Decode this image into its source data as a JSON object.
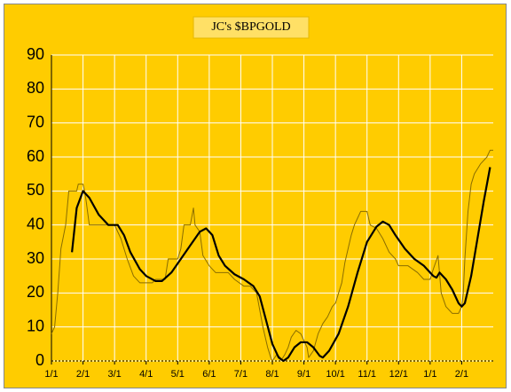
{
  "chart_data": {
    "type": "line",
    "title": "JC's $BPGOLD",
    "xlim": [
      0,
      14
    ],
    "xticks": [
      {
        "value": 0,
        "label": "1/1"
      },
      {
        "value": 1,
        "label": "2/1"
      },
      {
        "value": 2,
        "label": "3/1"
      },
      {
        "value": 3,
        "label": "4/1"
      },
      {
        "value": 4,
        "label": "5/1"
      },
      {
        "value": 5,
        "label": "6/1"
      },
      {
        "value": 6,
        "label": "7/1"
      },
      {
        "value": 7,
        "label": "8/1"
      },
      {
        "value": 8,
        "label": "9/1"
      },
      {
        "value": 9,
        "label": "10/1"
      },
      {
        "value": 10,
        "label": "11/1"
      },
      {
        "value": 11,
        "label": "12/1"
      },
      {
        "value": 12,
        "label": "1/1"
      },
      {
        "value": 13,
        "label": "2/1"
      }
    ],
    "ylim": [
      0,
      90
    ],
    "yticks": [
      0,
      10,
      20,
      30,
      40,
      50,
      60,
      70,
      80,
      90
    ],
    "grid": true,
    "background": "#ffcc00",
    "series": [
      {
        "color": "#8a6d00",
        "width": 1,
        "x": [
          0,
          0.1,
          0.2,
          0.3,
          0.45,
          0.55,
          0.8,
          0.85,
          1.0,
          1.05,
          1.1,
          1.2,
          1.5,
          2.0,
          2.2,
          2.4,
          2.6,
          2.8,
          3.0,
          3.2,
          3.3,
          3.6,
          3.7,
          4.0,
          4.1,
          4.2,
          4.4,
          4.5,
          4.55,
          4.7,
          4.8,
          5.0,
          5.2,
          5.6,
          5.8,
          6.1,
          6.3,
          6.5,
          6.7,
          6.85,
          6.95,
          7.0,
          7.15,
          7.3,
          7.4,
          7.5,
          7.6,
          7.75,
          7.9,
          8.0,
          8.1,
          8.15,
          8.3,
          8.45,
          8.6,
          8.75,
          8.9,
          9.0,
          9.1,
          9.2,
          9.3,
          9.4,
          9.5,
          9.6,
          9.7,
          9.8,
          10.0,
          10.1,
          10.3,
          10.5,
          10.7,
          10.9,
          11.0,
          11.3,
          11.6,
          11.8,
          12.0,
          12.1,
          12.25,
          12.35,
          12.5,
          12.7,
          12.9,
          13.0,
          13.05,
          13.1,
          13.2,
          13.3,
          13.4,
          13.6,
          13.8,
          13.9,
          14.0
        ],
        "values": [
          8,
          10,
          20,
          33,
          40,
          50,
          50,
          52,
          52,
          50,
          47,
          40,
          40,
          40,
          36,
          30,
          25,
          23,
          23,
          23,
          24,
          24,
          30,
          30,
          33,
          40,
          40,
          45,
          40,
          38,
          31,
          28,
          26,
          26,
          24,
          22,
          22,
          20,
          10,
          4,
          1,
          0,
          2,
          0.5,
          2,
          4,
          7,
          9,
          8,
          6,
          4,
          1,
          3,
          8,
          11,
          13,
          16,
          17,
          20,
          23,
          29,
          33,
          37,
          40,
          42,
          44,
          44,
          40,
          39,
          36,
          32,
          30,
          28,
          28,
          26,
          24,
          24,
          27,
          31,
          20,
          16,
          14,
          14,
          16,
          20,
          30,
          44,
          52,
          55,
          58,
          60,
          62,
          62
        ]
      },
      {
        "color": "#000000",
        "width": 2.2,
        "x": [
          0.65,
          0.8,
          1.0,
          1.2,
          1.5,
          1.8,
          2.1,
          2.3,
          2.5,
          2.8,
          3.0,
          3.3,
          3.5,
          3.8,
          4.1,
          4.4,
          4.7,
          4.9,
          5.1,
          5.3,
          5.5,
          5.8,
          6.1,
          6.4,
          6.6,
          6.8,
          7.0,
          7.2,
          7.35,
          7.5,
          7.7,
          7.9,
          8.1,
          8.3,
          8.5,
          8.6,
          8.8,
          9.1,
          9.4,
          9.7,
          10.0,
          10.3,
          10.5,
          10.7,
          10.9,
          11.2,
          11.5,
          11.8,
          12.0,
          12.1,
          12.2,
          12.3,
          12.5,
          12.7,
          12.9,
          13.0,
          13.1,
          13.3,
          13.5,
          13.7,
          13.9
        ],
        "values": [
          32,
          45,
          50,
          48,
          43,
          40,
          40,
          37,
          32,
          27,
          25,
          23.5,
          23.5,
          26,
          30,
          34,
          38,
          39,
          37,
          31,
          28,
          25.5,
          24,
          22,
          19,
          12,
          5,
          1,
          0,
          1,
          4,
          5.5,
          5.5,
          4,
          1.5,
          1,
          3,
          8,
          16,
          26,
          35,
          39.5,
          41,
          40,
          37,
          33,
          30,
          28,
          26,
          25,
          24.5,
          26,
          24,
          21,
          17,
          16,
          17,
          25,
          36,
          47,
          57
        ]
      }
    ]
  }
}
